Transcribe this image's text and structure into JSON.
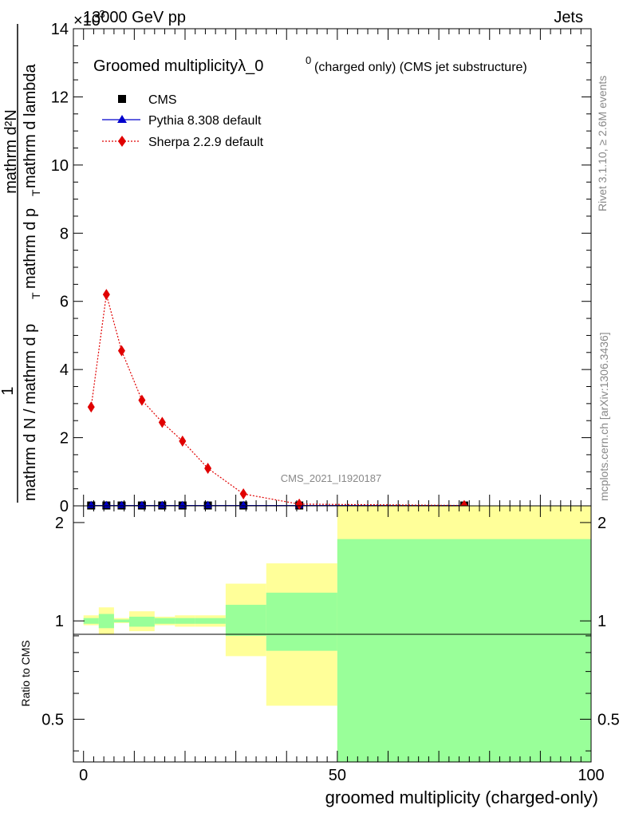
{
  "header": {
    "energy_label": "13000 GeV pp",
    "category_label": "Jets",
    "exponent_label": "×10",
    "exponent_power": "-3"
  },
  "plot_title": {
    "main": "Groomed multiplicityλ_0",
    "superscript": "0",
    "detail": "(charged only) (CMS jet substructure)"
  },
  "side_labels": {
    "rivet": "Rivet 3.1.10, ≥ 2.6M events",
    "mcplots": "mcplots.cern.ch [arXiv:1306.3436]"
  },
  "watermark": "CMS_2021_I1920187",
  "y_axis_label": {
    "numerator": "mathrm d²N",
    "fraction_top": "1",
    "main_left": "mathrm d N / mathrm d p",
    "main_sub": "T",
    "main_right": "mathrm d p",
    "main_sub2": "T",
    "main_tail": " mathrm d lambda"
  },
  "ratio_ylabel": "Ratio to CMS",
  "x_axis_label": "groomed multiplicity (charged-only)",
  "legend": [
    {
      "label": "CMS",
      "color": "#000000",
      "marker": "square"
    },
    {
      "label": "Pythia 8.308 default",
      "color": "#0000cc",
      "marker": "triangle"
    },
    {
      "label": "Sherpa 2.2.9 default",
      "color": "#e00000",
      "marker": "diamond"
    }
  ],
  "chart_data": [
    {
      "type": "scatter",
      "panel": "main",
      "xlim": [
        -2,
        100
      ],
      "ylim": [
        0,
        14
      ],
      "y_multiplier": "1e-3",
      "y_ticks": [
        "0",
        "2",
        "4",
        "6",
        "8",
        "10",
        "12",
        "14"
      ],
      "series": [
        {
          "name": "CMS",
          "color": "#000000",
          "x": [
            1.5,
            4.5,
            7.5,
            11.5,
            15.5,
            19.5,
            24.5,
            31.5,
            42.5,
            75
          ],
          "y": [
            0.01,
            0.01,
            0.01,
            0.01,
            0.01,
            0.01,
            0.01,
            0.01,
            0.01,
            0.01
          ]
        },
        {
          "name": "Pythia 8.308 default",
          "color": "#0000cc",
          "x": [
            1.5,
            4.5,
            7.5,
            11.5,
            15.5,
            19.5,
            24.5,
            31.5,
            42.5,
            75
          ],
          "y": [
            0.01,
            0.01,
            0.01,
            0.01,
            0.01,
            0.01,
            0.01,
            0.01,
            0.01,
            0.01
          ]
        },
        {
          "name": "Sherpa 2.2.9 default",
          "color": "#e00000",
          "x": [
            1.5,
            4.5,
            7.5,
            11.5,
            15.5,
            19.5,
            24.5,
            31.5,
            42.5,
            75
          ],
          "y": [
            2.9,
            6.2,
            4.55,
            3.1,
            2.45,
            1.9,
            1.1,
            0.35,
            0.05,
            0.01
          ]
        }
      ]
    },
    {
      "type": "area",
      "panel": "ratio",
      "xlim": [
        -2,
        100
      ],
      "ylim": [
        0.37,
        2.25
      ],
      "y_ticks": [
        "0.5",
        "1",
        "2"
      ],
      "x_ticks": [
        "0",
        "50",
        "100"
      ],
      "reference_line": 1,
      "bands": [
        {
          "x0": 0,
          "x1": 3,
          "yellow": [
            0.97,
            1.04
          ],
          "green": [
            0.98,
            1.02
          ]
        },
        {
          "x0": 3,
          "x1": 6,
          "yellow": [
            0.91,
            1.1
          ],
          "green": [
            0.95,
            1.05
          ]
        },
        {
          "x0": 6,
          "x1": 9,
          "yellow": [
            0.985,
            1.02
          ],
          "green": [
            0.99,
            1.01
          ]
        },
        {
          "x0": 9,
          "x1": 14,
          "yellow": [
            0.93,
            1.07
          ],
          "green": [
            0.96,
            1.03
          ]
        },
        {
          "x0": 14,
          "x1": 18,
          "yellow": [
            0.97,
            1.03
          ],
          "green": [
            0.98,
            1.02
          ]
        },
        {
          "x0": 18,
          "x1": 22,
          "yellow": [
            0.96,
            1.04
          ],
          "green": [
            0.98,
            1.02
          ]
        },
        {
          "x0": 22,
          "x1": 28,
          "yellow": [
            0.96,
            1.04
          ],
          "green": [
            0.98,
            1.02
          ]
        },
        {
          "x0": 28,
          "x1": 36,
          "yellow": [
            0.78,
            1.3
          ],
          "green": [
            0.9,
            1.12
          ]
        },
        {
          "x0": 36,
          "x1": 50,
          "yellow": [
            0.55,
            1.5
          ],
          "green": [
            0.81,
            1.22
          ]
        },
        {
          "x0": 50,
          "x1": 100,
          "yellow": [
            0.37,
            2.25
          ],
          "green": [
            0.37,
            1.78
          ]
        }
      ]
    }
  ]
}
